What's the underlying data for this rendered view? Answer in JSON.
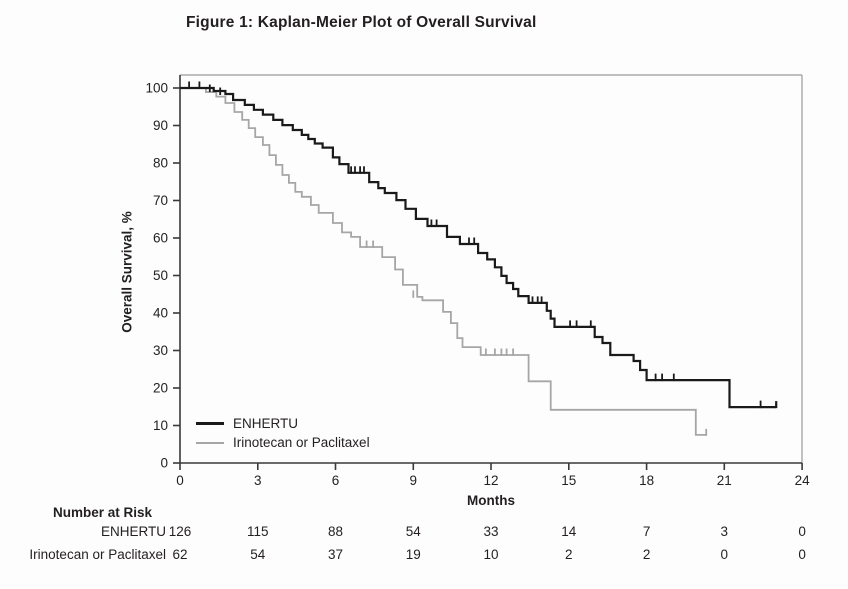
{
  "chart_data": {
    "type": "line",
    "subtype": "kaplan-meier-step",
    "title": "Figure 1: Kaplan-Meier Plot of Overall Survival",
    "xlabel": "Months",
    "ylabel": "Overall Survival, %",
    "xlim": [
      0,
      24
    ],
    "ylim": [
      0,
      100
    ],
    "x_ticks": [
      0,
      3,
      6,
      9,
      12,
      15,
      18,
      21,
      24
    ],
    "y_ticks": [
      0,
      10,
      20,
      30,
      40,
      50,
      60,
      70,
      80,
      90,
      100
    ],
    "grid": false,
    "legend_position": "inside-lower-left",
    "frame_color": "#9a9a9a",
    "axis_color": "#3a3a3a",
    "series": [
      {
        "name": "ENHERTU",
        "color": "#1a1a1a",
        "line_width": 2.2,
        "start": [
          0,
          100
        ],
        "steps": [
          [
            1.3,
            99.2
          ],
          [
            1.75,
            98.4
          ],
          [
            2.05,
            96.8
          ],
          [
            2.5,
            95.5
          ],
          [
            2.85,
            94.2
          ],
          [
            3.2,
            92.9
          ],
          [
            3.6,
            91.5
          ],
          [
            3.95,
            90.1
          ],
          [
            4.35,
            88.8
          ],
          [
            4.7,
            87.5
          ],
          [
            4.95,
            86.4
          ],
          [
            5.2,
            85.2
          ],
          [
            5.5,
            84.1
          ],
          [
            5.9,
            81.5
          ],
          [
            6.15,
            79.7
          ],
          [
            6.5,
            77.4
          ],
          [
            7.3,
            74.9
          ],
          [
            7.65,
            73.3
          ],
          [
            7.9,
            72.0
          ],
          [
            8.35,
            70.1
          ],
          [
            8.7,
            67.8
          ],
          [
            9.1,
            65.1
          ],
          [
            9.55,
            63.2
          ],
          [
            10.3,
            60.3
          ],
          [
            10.8,
            58.4
          ],
          [
            11.5,
            56.0
          ],
          [
            11.85,
            54.3
          ],
          [
            12.15,
            52.2
          ],
          [
            12.4,
            49.9
          ],
          [
            12.6,
            48.0
          ],
          [
            12.85,
            46.4
          ],
          [
            13.05,
            44.5
          ],
          [
            13.45,
            42.7
          ],
          [
            14.15,
            40.6
          ],
          [
            14.3,
            38.5
          ],
          [
            14.45,
            36.3
          ],
          [
            16.0,
            33.6
          ],
          [
            16.3,
            32.0
          ],
          [
            16.6,
            28.8
          ],
          [
            17.5,
            27.2
          ],
          [
            17.75,
            24.8
          ],
          [
            18.0,
            22.1
          ],
          [
            21.2,
            14.9
          ]
        ],
        "end_month": 23.0,
        "end_tick": true,
        "censors": [
          [
            0.35,
            100
          ],
          [
            0.75,
            100
          ],
          [
            1.15,
            99.2
          ],
          [
            1.55,
            98.4
          ],
          [
            6.6,
            77.4
          ],
          [
            6.75,
            77.4
          ],
          [
            6.95,
            77.4
          ],
          [
            7.1,
            77.4
          ],
          [
            9.7,
            63.2
          ],
          [
            9.9,
            63.2
          ],
          [
            11.15,
            58.4
          ],
          [
            11.35,
            58.4
          ],
          [
            13.6,
            42.7
          ],
          [
            13.8,
            42.7
          ],
          [
            13.95,
            42.7
          ],
          [
            15.05,
            36.3
          ],
          [
            15.3,
            36.3
          ],
          [
            15.85,
            36.3
          ],
          [
            18.35,
            22.1
          ],
          [
            18.6,
            22.1
          ],
          [
            19.05,
            22.1
          ],
          [
            22.4,
            14.9
          ]
        ]
      },
      {
        "name": "Irinotecan or Paclitaxel",
        "color": "#a6a6a6",
        "line_width": 1.8,
        "start": [
          0,
          100
        ],
        "steps": [
          [
            1.0,
            98.9
          ],
          [
            1.4,
            97.7
          ],
          [
            1.75,
            96.0
          ],
          [
            2.1,
            93.6
          ],
          [
            2.4,
            91.5
          ],
          [
            2.65,
            89.3
          ],
          [
            2.9,
            86.9
          ],
          [
            3.2,
            84.8
          ],
          [
            3.45,
            82.1
          ],
          [
            3.7,
            79.5
          ],
          [
            3.95,
            76.8
          ],
          [
            4.2,
            74.7
          ],
          [
            4.45,
            72.3
          ],
          [
            4.7,
            71.0
          ],
          [
            5.05,
            68.8
          ],
          [
            5.35,
            66.7
          ],
          [
            5.9,
            64.0
          ],
          [
            6.25,
            61.5
          ],
          [
            6.6,
            60.3
          ],
          [
            6.95,
            57.6
          ],
          [
            7.8,
            54.9
          ],
          [
            8.3,
            51.6
          ],
          [
            8.6,
            47.5
          ],
          [
            9.15,
            44.3
          ],
          [
            9.35,
            43.4
          ],
          [
            10.15,
            40.3
          ],
          [
            10.45,
            37.3
          ],
          [
            10.7,
            33.3
          ],
          [
            10.9,
            30.9
          ],
          [
            11.6,
            28.8
          ],
          [
            13.45,
            21.8
          ],
          [
            14.3,
            14.2
          ],
          [
            19.9,
            7.5
          ]
        ],
        "end_month": 20.3,
        "end_tick": true,
        "censors": [
          [
            7.2,
            57.6
          ],
          [
            7.45,
            57.6
          ],
          [
            9.0,
            44.3
          ],
          [
            11.8,
            28.8
          ],
          [
            12.15,
            28.8
          ],
          [
            12.4,
            28.8
          ],
          [
            12.6,
            28.8
          ],
          [
            12.85,
            28.8
          ]
        ]
      }
    ],
    "number_at_risk": {
      "header": "Number at Risk",
      "time_points": [
        0,
        3,
        6,
        9,
        12,
        15,
        18,
        21,
        24
      ],
      "rows": [
        {
          "label": "ENHERTU",
          "counts": [
            126,
            115,
            88,
            54,
            33,
            14,
            7,
            3,
            0
          ]
        },
        {
          "label": "Irinotecan or Paclitaxel",
          "counts": [
            62,
            54,
            37,
            19,
            10,
            2,
            2,
            0,
            0
          ]
        }
      ]
    }
  }
}
